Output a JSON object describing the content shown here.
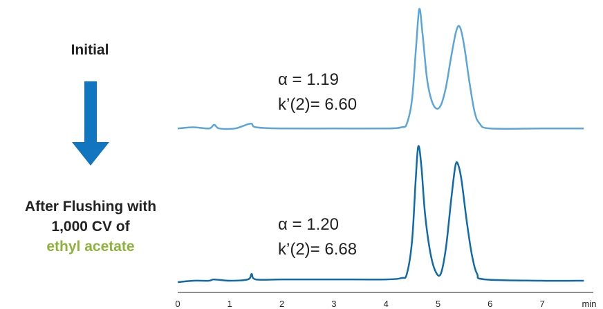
{
  "labels": {
    "initial": "Initial",
    "after_line1": "After Flushing with",
    "after_line2": "1,000 CV of",
    "after_line3": "ethyl acetate"
  },
  "colors": {
    "initial_trace": "#5aa6db",
    "after_trace": "#0f6aab",
    "arrow": "#1275bf",
    "highlight_text": "#8db33a"
  },
  "icons": {
    "arrow": "arrow-down-icon"
  },
  "chart_data": {
    "type": "line",
    "x_unit": "min",
    "xlim": [
      0,
      7.8
    ],
    "x_ticks": [
      "0",
      "1",
      "2",
      "3",
      "4",
      "5",
      "6",
      "7",
      "min"
    ],
    "series": [
      {
        "alpha": "α = 1.19",
        "k2": "k’(2)= 6.60",
        "points": [
          [
            0,
            0.01
          ],
          [
            0.3,
            0.02
          ],
          [
            0.6,
            0.01
          ],
          [
            0.7,
            0.04
          ],
          [
            0.8,
            0.01
          ],
          [
            1.1,
            0.01
          ],
          [
            1.4,
            0.05
          ],
          [
            1.5,
            0.02
          ],
          [
            2,
            0.01
          ],
          [
            3,
            0.01
          ],
          [
            4,
            0.01
          ],
          [
            4.3,
            0.02
          ],
          [
            4.4,
            0.05
          ],
          [
            4.5,
            0.25
          ],
          [
            4.58,
            0.7
          ],
          [
            4.64,
            1.0
          ],
          [
            4.7,
            0.8
          ],
          [
            4.78,
            0.45
          ],
          [
            4.85,
            0.28
          ],
          [
            4.95,
            0.18
          ],
          [
            5.05,
            0.2
          ],
          [
            5.15,
            0.35
          ],
          [
            5.25,
            0.6
          ],
          [
            5.35,
            0.82
          ],
          [
            5.42,
            0.85
          ],
          [
            5.5,
            0.7
          ],
          [
            5.6,
            0.4
          ],
          [
            5.7,
            0.15
          ],
          [
            5.8,
            0.05
          ],
          [
            6,
            0.01
          ],
          [
            7,
            0.01
          ],
          [
            7.8,
            0.01
          ]
        ]
      },
      {
        "alpha": "α = 1.20",
        "k2": "k’(2)= 6.68",
        "points": [
          [
            0,
            0.0
          ],
          [
            0.3,
            0.01
          ],
          [
            0.6,
            0.01
          ],
          [
            0.7,
            0.02
          ],
          [
            1.0,
            0.01
          ],
          [
            1.35,
            0.02
          ],
          [
            1.42,
            0.06
          ],
          [
            1.5,
            0.02
          ],
          [
            2,
            0.02
          ],
          [
            3,
            0.02
          ],
          [
            4,
            0.02
          ],
          [
            4.3,
            0.03
          ],
          [
            4.4,
            0.06
          ],
          [
            4.5,
            0.3
          ],
          [
            4.57,
            0.75
          ],
          [
            4.62,
            1.0
          ],
          [
            4.68,
            0.85
          ],
          [
            4.75,
            0.5
          ],
          [
            4.85,
            0.22
          ],
          [
            4.95,
            0.08
          ],
          [
            5.05,
            0.06
          ],
          [
            5.15,
            0.25
          ],
          [
            5.25,
            0.6
          ],
          [
            5.33,
            0.85
          ],
          [
            5.38,
            0.87
          ],
          [
            5.45,
            0.75
          ],
          [
            5.55,
            0.45
          ],
          [
            5.65,
            0.2
          ],
          [
            5.75,
            0.06
          ],
          [
            5.9,
            0.02
          ],
          [
            7,
            0.01
          ],
          [
            7.8,
            0.01
          ]
        ]
      }
    ]
  }
}
